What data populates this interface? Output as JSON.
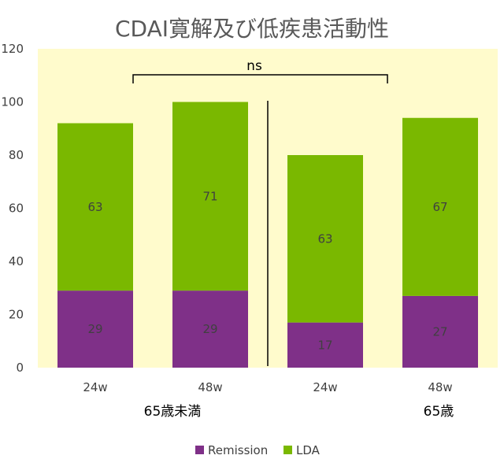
{
  "chart_data": {
    "type": "bar",
    "stacked": true,
    "title": "CDAI寛解及び低疾患活動性",
    "categories": [
      "24w",
      "48w",
      "24w",
      "48w"
    ],
    "groups": [
      {
        "label": "65歳未満",
        "categories": [
          0,
          1
        ]
      },
      {
        "label": "65歳",
        "categories": [
          2,
          3
        ]
      }
    ],
    "series": [
      {
        "name": "Remission",
        "values": [
          29,
          29,
          17,
          27
        ],
        "color": "#7F3088"
      },
      {
        "name": "LDA",
        "values": [
          63,
          71,
          63,
          67
        ],
        "color": "#7AB800"
      }
    ],
    "ylim": [
      0,
      120
    ],
    "yticks": [
      0,
      20,
      40,
      60,
      80,
      100,
      120
    ],
    "annotation": "ns",
    "legend_position": "bottom",
    "plot_background": "#FFFBCC"
  }
}
